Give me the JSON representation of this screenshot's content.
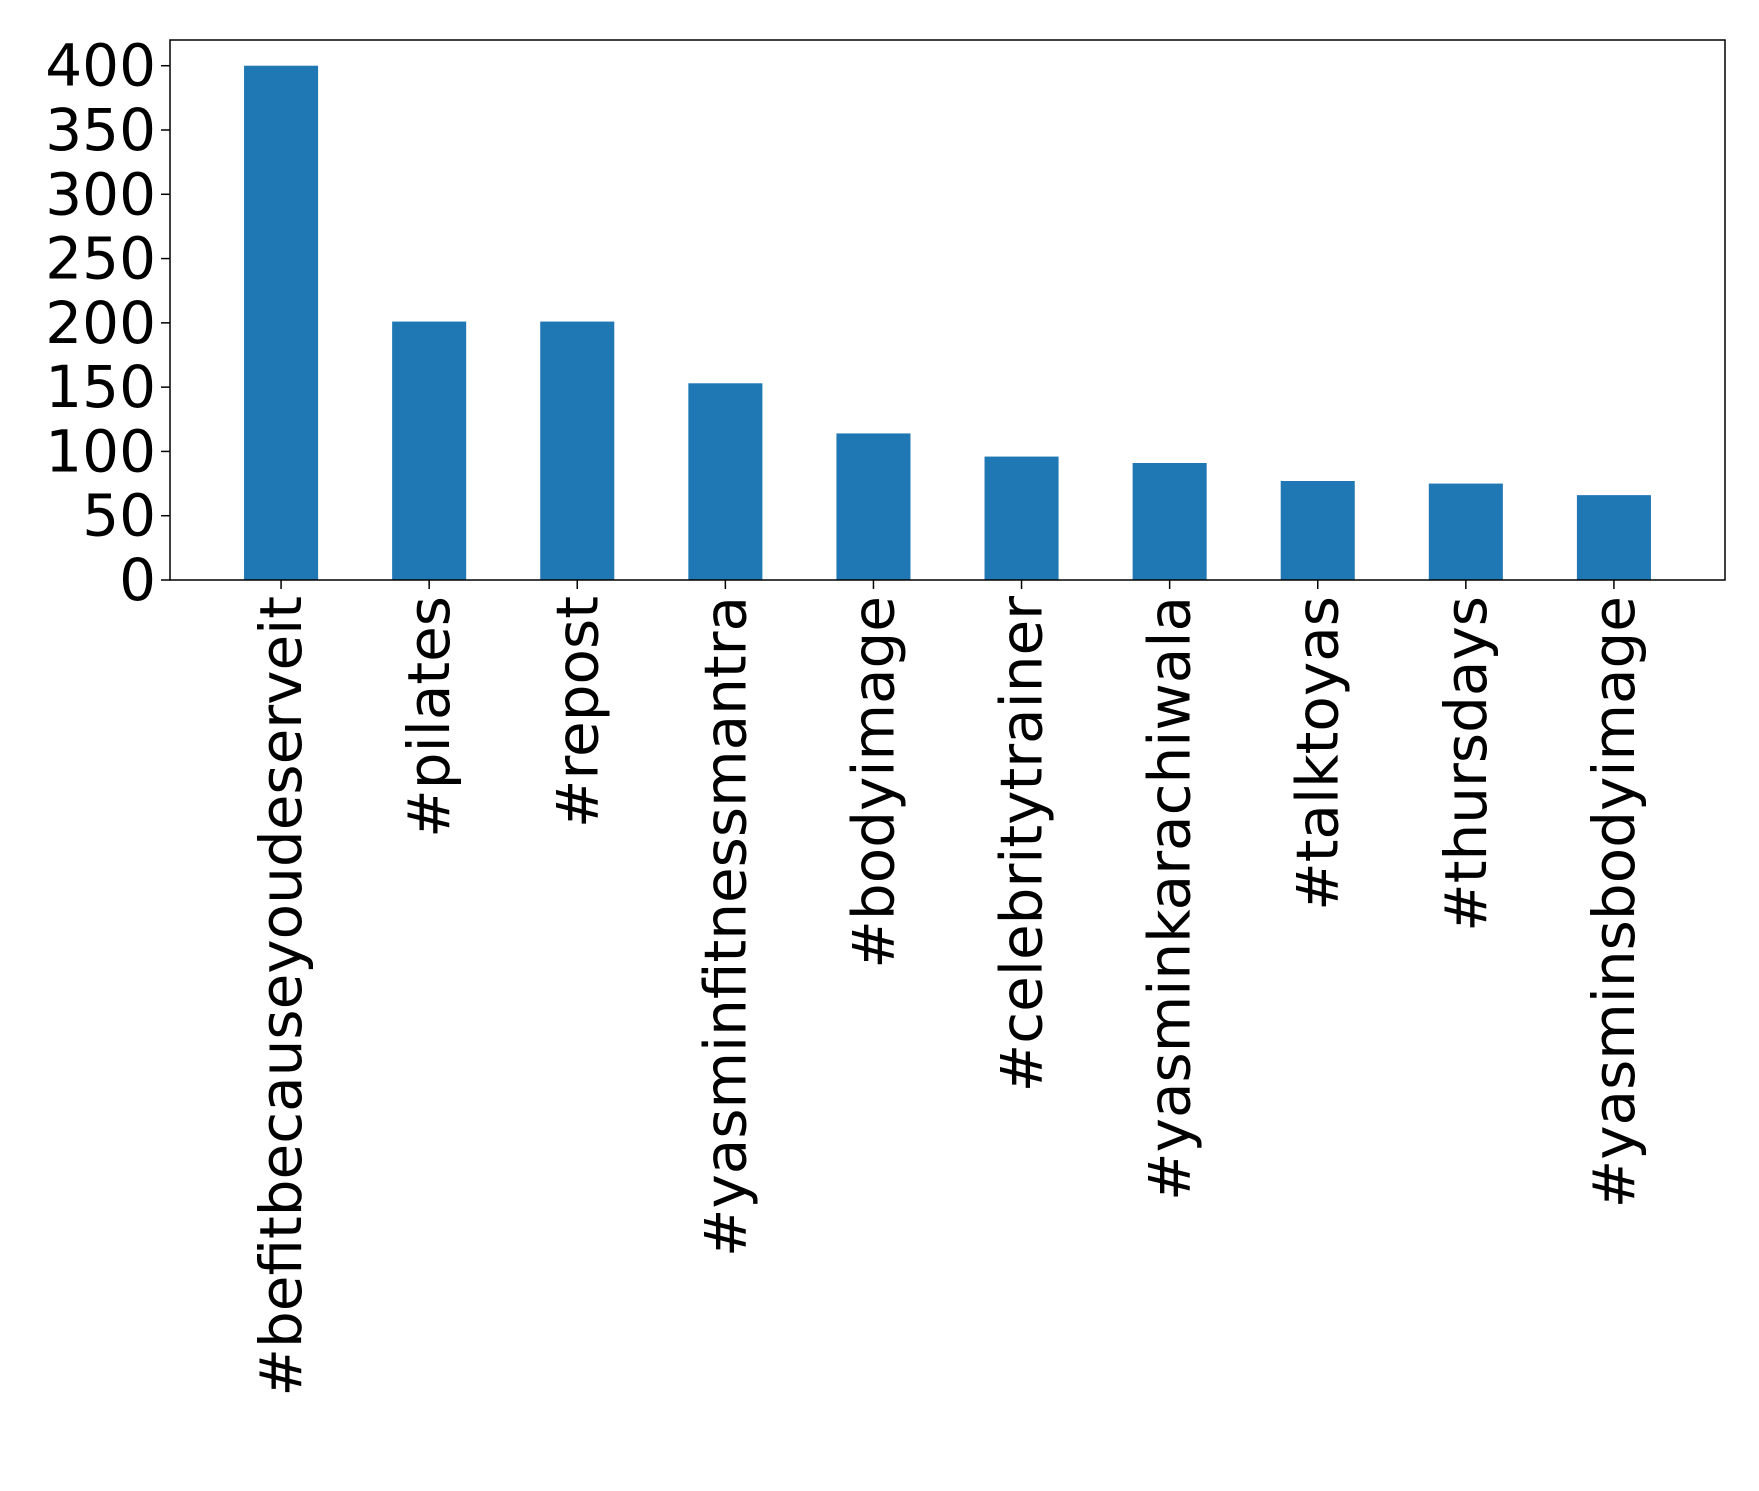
{
  "chart_data": {
    "type": "bar",
    "title": "",
    "xlabel": "",
    "ylabel": "",
    "categories": [
      "#befitbecauseyoudeserveit",
      "#pilates",
      "#repost",
      "#yasminfitnessmantra",
      "#bodyimage",
      "#celebritytrainer",
      "#yasminkarachiwala",
      "#talktoyas",
      "#thursdays",
      "#yasminsbodyimage"
    ],
    "values": [
      400,
      201,
      201,
      153,
      114,
      96,
      91,
      77,
      75,
      66
    ],
    "ylim": [
      0,
      420
    ],
    "yticks": [
      0,
      50,
      100,
      150,
      200,
      250,
      300,
      350,
      400
    ],
    "grid": false,
    "bar_color": "#1f77b4"
  }
}
